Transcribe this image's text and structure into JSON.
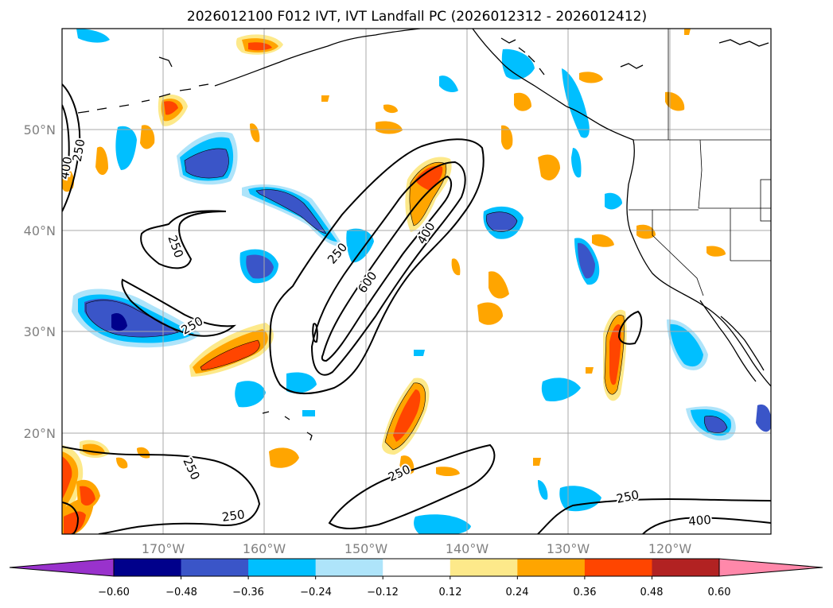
{
  "title": "2026012100 F012 IVT, IVT Landfall PC (2026012312 - 2026012412)",
  "map": {
    "lon_range": [
      -180,
      -110
    ],
    "lat_range": [
      10,
      60
    ],
    "lon_ticks": [
      "170°W",
      "160°W",
      "150°W",
      "140°W",
      "130°W",
      "120°W"
    ],
    "lat_ticks": [
      "50°N",
      "40°N",
      "30°N",
      "20°N"
    ]
  },
  "contour_labels": [
    "400",
    "250",
    "250",
    "250",
    "250",
    "600",
    "400",
    "250",
    "250",
    "250",
    "250",
    "400"
  ],
  "colorbar": {
    "ticks": [
      "−0.60",
      "−0.48",
      "−0.36",
      "−0.24",
      "−0.12",
      "0.12",
      "0.24",
      "0.36",
      "0.48",
      "0.60"
    ],
    "colors": [
      "#9932cc",
      "#00008b",
      "#3a55c8",
      "#00bfff",
      "#aee4fa",
      "#ffffff",
      "#fde98a",
      "#ffa500",
      "#ff4500",
      "#b22222",
      "#ff88aa"
    ]
  }
}
